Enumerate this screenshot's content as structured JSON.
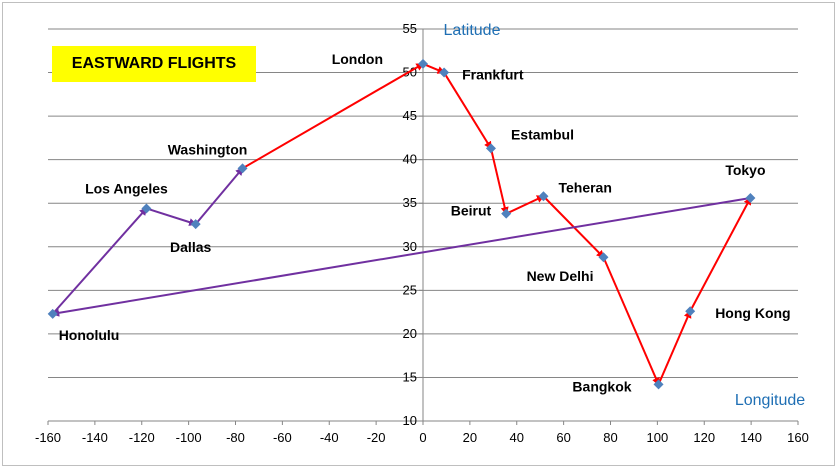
{
  "chart_data": {
    "type": "line",
    "title": "EASTWARD FLIGHTS",
    "xlabel": "Longitude",
    "ylabel": "Latitude",
    "xlim": [
      -160,
      160
    ],
    "ylim": [
      10,
      55
    ],
    "x_ticks": [
      -160,
      -140,
      -120,
      -100,
      -80,
      -60,
      -40,
      -20,
      0,
      20,
      40,
      60,
      80,
      100,
      120,
      140,
      160
    ],
    "y_ticks": [
      10,
      15,
      20,
      25,
      30,
      35,
      40,
      45,
      50,
      55
    ],
    "grid": "horizontal",
    "points": [
      {
        "name": "Honolulu",
        "x": -158,
        "y": 22.3
      },
      {
        "name": "Los Angeles",
        "x": -118,
        "y": 34.4
      },
      {
        "name": "Dallas",
        "x": -97,
        "y": 32.6
      },
      {
        "name": "Washington",
        "x": -77,
        "y": 39
      },
      {
        "name": "London",
        "x": 0,
        "y": 51
      },
      {
        "name": "Frankfurt",
        "x": 9,
        "y": 50
      },
      {
        "name": "Estambul",
        "x": 29,
        "y": 41.3
      },
      {
        "name": "Beirut",
        "x": 35.5,
        "y": 33.8
      },
      {
        "name": "Teheran",
        "x": 51.4,
        "y": 35.8
      },
      {
        "name": "New Delhi",
        "x": 77,
        "y": 28.8
      },
      {
        "name": "Bangkok",
        "x": 100.5,
        "y": 14.2
      },
      {
        "name": "Hong Kong",
        "x": 114,
        "y": 22.6
      },
      {
        "name": "Tokyo",
        "x": 139.7,
        "y": 35.6
      }
    ],
    "series": [
      {
        "color": "#7030a0",
        "route": [
          "Honolulu",
          "Los Angeles",
          "Dallas",
          "Washington"
        ]
      },
      {
        "color": "#ff0000",
        "route": [
          "Washington",
          "London",
          "Frankfurt",
          "Estambul",
          "Beirut",
          "Teheran",
          "New Delhi",
          "Bangkok",
          "Hong Kong",
          "Tokyo"
        ]
      },
      {
        "color": "#7030a0",
        "route": [
          "Tokyo",
          "Honolulu"
        ]
      }
    ],
    "marker_color": "#4f81bd",
    "title_background": "#ffff00",
    "axis_title_color": "#1f6fb4",
    "grid_color": "#868686"
  }
}
